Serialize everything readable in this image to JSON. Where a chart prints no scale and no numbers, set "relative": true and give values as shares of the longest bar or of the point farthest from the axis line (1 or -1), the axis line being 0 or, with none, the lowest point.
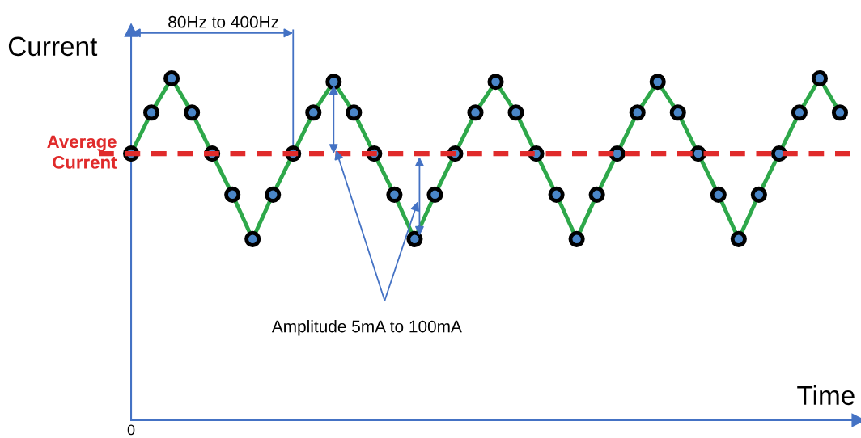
{
  "chart_data": {
    "type": "line",
    "relative": true,
    "xlabel": "Time",
    "ylabel": "Current",
    "marker": "circle",
    "series": [
      {
        "color": "#2ea84a",
        "values": [
          0.78,
          0.9,
          1.0,
          0.9,
          0.78,
          0.66,
          0.53,
          0.66,
          0.78,
          0.9,
          0.99,
          0.9,
          0.78,
          0.66,
          0.53,
          0.66,
          0.78,
          0.9,
          0.99,
          0.9,
          0.78,
          0.66,
          0.53,
          0.66,
          0.78,
          0.9,
          0.99,
          0.9,
          0.78,
          0.66,
          0.53,
          0.66,
          0.78,
          0.9,
          1.0,
          0.9
        ]
      }
    ],
    "categories": [
      null,
      null,
      null,
      null,
      null,
      null,
      null,
      null,
      null,
      null,
      null,
      null,
      null,
      null,
      null,
      null,
      null,
      null,
      null,
      null,
      null,
      null,
      null,
      null,
      null,
      null,
      null,
      null,
      null,
      null,
      null,
      null,
      null,
      null,
      null,
      null
    ],
    "ref_lines": [
      {
        "axis": "y",
        "value": 0.78,
        "label": "Average Current",
        "color": "#e02b2b",
        "line_style": "dashed"
      }
    ],
    "annotations": [
      "80Hz to 400Hz",
      "Amplitude 5mA to 100mA",
      "0"
    ],
    "legend": false
  }
}
